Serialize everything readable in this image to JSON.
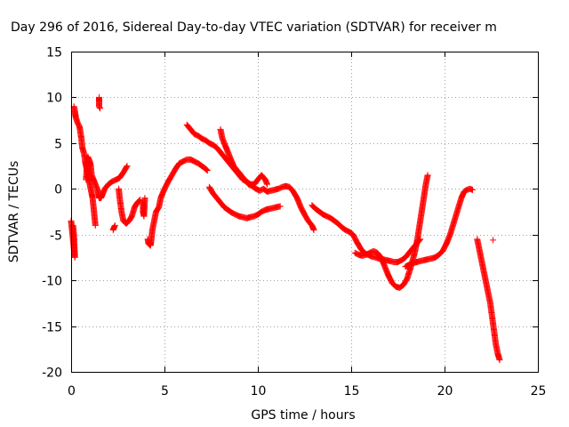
{
  "chart_data": {
    "type": "scatter",
    "title": "Day 296 of 2016, Sidereal Day-to-day VTEC variation (SDTVAR) for receiver m",
    "xlabel": "GPS time / hours",
    "ylabel": "SDTVAR / TECUs",
    "xlim": [
      0,
      25
    ],
    "ylim": [
      -20,
      15
    ],
    "xticks": [
      0,
      5,
      10,
      15,
      20,
      25
    ],
    "yticks": [
      -20,
      -15,
      -10,
      -5,
      0,
      5,
      10,
      15
    ],
    "grid": true,
    "marker": "+",
    "color": "#ff0000",
    "series": [
      {
        "values": [
          [
            0.0,
            -3.5
          ],
          [
            0.05,
            -4.5
          ],
          [
            0.1,
            -5.5
          ],
          [
            0.15,
            -6.5
          ],
          [
            0.2,
            -7.5
          ],
          [
            0.15,
            -5.0
          ],
          [
            0.1,
            -4.0
          ]
        ]
      },
      {
        "values": [
          [
            0.15,
            9.0
          ],
          [
            0.2,
            8.5
          ],
          [
            0.25,
            7.8
          ],
          [
            0.35,
            7.2
          ],
          [
            0.45,
            6.8
          ],
          [
            0.55,
            5.5
          ],
          [
            0.6,
            4.5
          ],
          [
            0.7,
            3.8
          ],
          [
            0.75,
            3.0
          ],
          [
            0.8,
            2.5
          ],
          [
            0.85,
            2.0
          ],
          [
            0.9,
            1.5
          ],
          [
            0.95,
            1.0
          ],
          [
            1.0,
            0.5
          ],
          [
            1.05,
            0.0
          ],
          [
            1.1,
            -0.5
          ],
          [
            1.15,
            -1.0
          ],
          [
            1.2,
            -2.0
          ],
          [
            1.25,
            -3.0
          ],
          [
            1.3,
            -4.0
          ]
        ]
      },
      {
        "values": [
          [
            0.8,
            1.0
          ],
          [
            0.85,
            2.5
          ],
          [
            0.9,
            3.5
          ],
          [
            1.0,
            3.0
          ],
          [
            1.05,
            2.5
          ],
          [
            1.1,
            1.5
          ],
          [
            1.2,
            1.0
          ],
          [
            1.3,
            0.5
          ],
          [
            1.4,
            0.0
          ],
          [
            1.45,
            -0.5
          ],
          [
            1.5,
            -1.0
          ],
          [
            1.6,
            -1.0
          ],
          [
            1.7,
            -0.5
          ],
          [
            1.8,
            0.0
          ],
          [
            2.0,
            0.5
          ],
          [
            2.2,
            0.8
          ],
          [
            2.4,
            1.0
          ],
          [
            2.6,
            1.2
          ],
          [
            2.8,
            1.8
          ],
          [
            3.0,
            2.5
          ]
        ]
      },
      {
        "values": [
          [
            1.5,
            10.0
          ],
          [
            1.5,
            9.5
          ],
          [
            1.5,
            9.0
          ],
          [
            1.55,
            8.8
          ]
        ]
      },
      {
        "values": [
          [
            2.25,
            -4.5
          ],
          [
            2.3,
            -4.2
          ],
          [
            2.35,
            -4.0
          ]
        ]
      },
      {
        "values": [
          [
            2.55,
            0.0
          ],
          [
            2.6,
            -1.0
          ],
          [
            2.7,
            -2.5
          ],
          [
            2.8,
            -3.5
          ],
          [
            2.95,
            -3.8
          ],
          [
            3.1,
            -3.5
          ],
          [
            3.25,
            -3.0
          ],
          [
            3.4,
            -2.0
          ],
          [
            3.55,
            -1.5
          ],
          [
            3.7,
            -1.2
          ]
        ]
      },
      {
        "values": [
          [
            3.85,
            -1.5
          ],
          [
            3.85,
            -2.5
          ],
          [
            3.9,
            -3.0
          ],
          [
            3.95,
            -1.0
          ]
        ]
      },
      {
        "values": [
          [
            4.1,
            -5.5
          ],
          [
            4.15,
            -6.0
          ],
          [
            4.25,
            -6.2
          ],
          [
            4.3,
            -5.5
          ],
          [
            4.35,
            -4.5
          ],
          [
            4.45,
            -3.5
          ],
          [
            4.55,
            -2.5
          ],
          [
            4.7,
            -2.0
          ],
          [
            4.8,
            -1.0
          ],
          [
            4.9,
            -0.5
          ],
          [
            5.0,
            0.0
          ],
          [
            5.2,
            0.8
          ],
          [
            5.4,
            1.5
          ],
          [
            5.6,
            2.2
          ],
          [
            5.8,
            2.8
          ],
          [
            6.0,
            3.0
          ],
          [
            6.2,
            3.2
          ],
          [
            6.4,
            3.2
          ],
          [
            6.6,
            3.0
          ],
          [
            6.8,
            2.8
          ],
          [
            7.0,
            2.5
          ],
          [
            7.2,
            2.2
          ],
          [
            7.3,
            2.0
          ]
        ]
      },
      {
        "values": [
          [
            6.2,
            7.0
          ],
          [
            6.4,
            6.5
          ],
          [
            6.6,
            6.0
          ],
          [
            6.8,
            5.8
          ],
          [
            7.0,
            5.5
          ],
          [
            7.2,
            5.3
          ],
          [
            7.4,
            5.0
          ],
          [
            7.6,
            4.8
          ],
          [
            7.8,
            4.5
          ],
          [
            8.0,
            4.0
          ],
          [
            8.2,
            3.5
          ],
          [
            8.4,
            3.0
          ],
          [
            8.6,
            2.5
          ],
          [
            8.8,
            2.0
          ],
          [
            9.0,
            1.5
          ],
          [
            9.2,
            1.0
          ],
          [
            9.4,
            0.8
          ],
          [
            9.6,
            0.5
          ],
          [
            9.8,
            0.5
          ],
          [
            10.0,
            1.0
          ],
          [
            10.2,
            1.5
          ],
          [
            10.4,
            1.0
          ],
          [
            10.5,
            0.5
          ]
        ]
      },
      {
        "values": [
          [
            7.4,
            0.2
          ],
          [
            7.6,
            -0.5
          ],
          [
            7.8,
            -1.0
          ],
          [
            8.0,
            -1.5
          ],
          [
            8.2,
            -2.0
          ],
          [
            8.4,
            -2.3
          ],
          [
            8.6,
            -2.6
          ],
          [
            8.8,
            -2.8
          ],
          [
            9.0,
            -3.0
          ],
          [
            9.2,
            -3.1
          ],
          [
            9.4,
            -3.2
          ],
          [
            9.6,
            -3.1
          ],
          [
            9.8,
            -3.0
          ],
          [
            10.0,
            -2.8
          ],
          [
            10.2,
            -2.5
          ],
          [
            10.4,
            -2.3
          ],
          [
            10.6,
            -2.2
          ],
          [
            10.8,
            -2.1
          ],
          [
            11.0,
            -2.0
          ],
          [
            11.2,
            -1.9
          ]
        ]
      },
      {
        "values": [
          [
            8.0,
            6.5
          ],
          [
            8.1,
            5.5
          ],
          [
            8.3,
            4.5
          ],
          [
            8.5,
            3.5
          ],
          [
            8.7,
            2.5
          ],
          [
            8.9,
            2.0
          ],
          [
            9.1,
            1.5
          ],
          [
            9.3,
            1.0
          ],
          [
            9.5,
            0.5
          ],
          [
            9.7,
            0.3
          ],
          [
            9.9,
            0.0
          ],
          [
            10.1,
            -0.2
          ],
          [
            10.3,
            0.0
          ],
          [
            10.5,
            -0.3
          ],
          [
            10.7,
            -0.2
          ],
          [
            10.9,
            -0.1
          ],
          [
            11.1,
            0.0
          ],
          [
            11.3,
            0.2
          ],
          [
            11.5,
            0.3
          ],
          [
            11.7,
            0.2
          ],
          [
            11.9,
            -0.3
          ],
          [
            12.1,
            -1.0
          ],
          [
            12.3,
            -2.0
          ],
          [
            12.5,
            -2.8
          ],
          [
            12.7,
            -3.5
          ],
          [
            12.9,
            -4.0
          ],
          [
            13.0,
            -4.5
          ]
        ]
      },
      {
        "values": [
          [
            12.9,
            -1.8
          ],
          [
            13.1,
            -2.2
          ],
          [
            13.3,
            -2.5
          ],
          [
            13.5,
            -2.8
          ],
          [
            13.7,
            -3.0
          ],
          [
            13.9,
            -3.2
          ],
          [
            14.1,
            -3.5
          ],
          [
            14.3,
            -3.8
          ],
          [
            14.5,
            -4.2
          ],
          [
            14.7,
            -4.5
          ],
          [
            14.9,
            -4.7
          ],
          [
            15.1,
            -5.0
          ],
          [
            15.3,
            -5.8
          ],
          [
            15.5,
            -6.5
          ],
          [
            15.7,
            -7.0
          ],
          [
            15.9,
            -7.2
          ],
          [
            16.1,
            -7.4
          ],
          [
            16.3,
            -7.5
          ],
          [
            16.5,
            -7.6
          ],
          [
            16.7,
            -7.7
          ],
          [
            16.9,
            -7.8
          ],
          [
            17.1,
            -7.9
          ],
          [
            17.3,
            -8.0
          ],
          [
            17.5,
            -8.0
          ],
          [
            17.7,
            -7.8
          ],
          [
            17.9,
            -7.5
          ],
          [
            18.1,
            -7.0
          ],
          [
            18.3,
            -6.5
          ],
          [
            18.5,
            -6.0
          ],
          [
            18.7,
            -5.5
          ]
        ]
      },
      {
        "values": [
          [
            15.2,
            -7.0
          ],
          [
            15.4,
            -7.2
          ],
          [
            15.6,
            -7.3
          ],
          [
            15.8,
            -7.2
          ],
          [
            16.0,
            -7.0
          ],
          [
            16.2,
            -6.8
          ],
          [
            16.4,
            -7.0
          ],
          [
            16.6,
            -7.5
          ],
          [
            16.8,
            -8.5
          ],
          [
            17.0,
            -9.5
          ],
          [
            17.2,
            -10.3
          ],
          [
            17.4,
            -10.7
          ],
          [
            17.6,
            -10.8
          ],
          [
            17.8,
            -10.5
          ],
          [
            18.0,
            -9.8
          ],
          [
            18.2,
            -8.5
          ],
          [
            18.4,
            -7.0
          ],
          [
            18.55,
            -5.5
          ],
          [
            18.7,
            -3.5
          ],
          [
            18.85,
            -1.5
          ],
          [
            19.0,
            0.5
          ],
          [
            19.1,
            1.5
          ]
        ]
      },
      {
        "values": [
          [
            17.9,
            -8.5
          ],
          [
            18.1,
            -8.3
          ],
          [
            18.3,
            -8.1
          ],
          [
            18.5,
            -8.0
          ],
          [
            18.7,
            -7.9
          ],
          [
            18.9,
            -7.8
          ],
          [
            19.1,
            -7.7
          ],
          [
            19.3,
            -7.6
          ],
          [
            19.5,
            -7.5
          ],
          [
            19.7,
            -7.2
          ],
          [
            19.9,
            -6.8
          ],
          [
            20.1,
            -6.0
          ],
          [
            20.3,
            -5.0
          ],
          [
            20.45,
            -4.0
          ],
          [
            20.6,
            -3.0
          ],
          [
            20.75,
            -2.0
          ],
          [
            20.9,
            -1.0
          ],
          [
            21.05,
            -0.3
          ],
          [
            21.2,
            -0.1
          ],
          [
            21.35,
            0.0
          ],
          [
            21.5,
            -0.1
          ]
        ]
      },
      {
        "values": [
          [
            21.75,
            -5.5
          ],
          [
            21.85,
            -6.5
          ],
          [
            21.95,
            -7.5
          ],
          [
            22.05,
            -8.5
          ],
          [
            22.15,
            -9.5
          ],
          [
            22.25,
            -10.5
          ],
          [
            22.35,
            -11.5
          ],
          [
            22.45,
            -12.5
          ],
          [
            22.55,
            -14.0
          ],
          [
            22.65,
            -15.5
          ],
          [
            22.75,
            -17.0
          ],
          [
            22.85,
            -18.0
          ],
          [
            22.95,
            -18.7
          ]
        ]
      },
      {
        "values": [
          [
            22.6,
            -5.6
          ]
        ]
      }
    ]
  }
}
